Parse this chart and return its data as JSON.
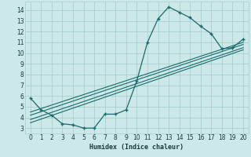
{
  "xlabel": "Humidex (Indice chaleur)",
  "bg_color": "#cce8e8",
  "grid_color": "#aacece",
  "line_color": "#1a6b6b",
  "xlim": [
    -0.5,
    20.5
  ],
  "ylim": [
    2.5,
    14.8
  ],
  "xticks": [
    0,
    1,
    2,
    3,
    4,
    5,
    6,
    7,
    8,
    9,
    10,
    11,
    12,
    13,
    14,
    15,
    16,
    17,
    18,
    19,
    20
  ],
  "yticks": [
    3,
    4,
    5,
    6,
    7,
    8,
    9,
    10,
    11,
    12,
    13,
    14
  ],
  "scatter_x": [
    0,
    1,
    2,
    3,
    4,
    5,
    6,
    7,
    8,
    9,
    10,
    11,
    12,
    13,
    14,
    15,
    16,
    17,
    18,
    19,
    20
  ],
  "scatter_y": [
    5.8,
    4.7,
    4.2,
    3.4,
    3.3,
    3.0,
    3.0,
    4.3,
    4.3,
    4.7,
    7.4,
    11.0,
    13.2,
    14.3,
    13.8,
    13.3,
    12.5,
    11.8,
    10.4,
    10.5,
    11.3
  ],
  "reg_lines": [
    {
      "x0": 0,
      "y0": 3.5,
      "x1": 20,
      "y1": 10.3
    },
    {
      "x0": 0,
      "y0": 3.8,
      "x1": 20,
      "y1": 10.5
    },
    {
      "x0": 0,
      "y0": 4.2,
      "x1": 20,
      "y1": 10.8
    },
    {
      "x0": 0,
      "y0": 4.5,
      "x1": 20,
      "y1": 11.0
    }
  ]
}
